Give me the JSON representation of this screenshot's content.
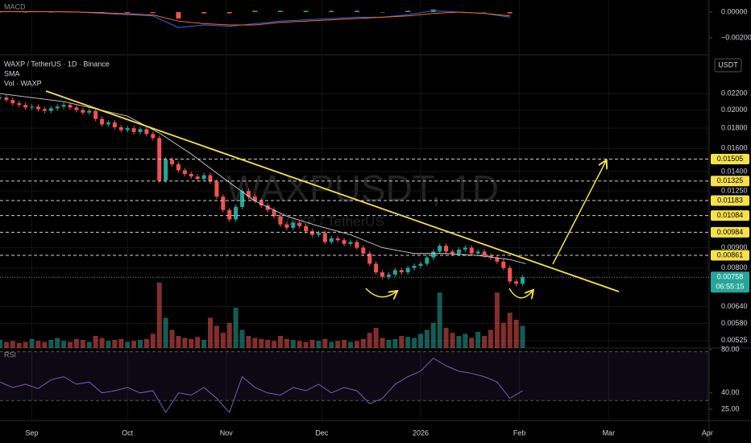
{
  "chart_data": [
    {
      "type": "candlestick",
      "title": "WAXP / TetherUS · 1D · Binance",
      "indicators": [
        "SMA",
        "Vol · WAXP"
      ],
      "watermark": "WAXPUSDT, 1D",
      "watermark_sub": "WAXP / TetherUS",
      "currency": "USDT",
      "up_color": "#26a69a",
      "down_color": "#ef5350",
      "log_scale": true,
      "grid": true,
      "xlim": [
        -10,
        210
      ],
      "xticks": [
        {
          "value": 0,
          "label": "Sep"
        },
        {
          "value": 30,
          "label": "Oct"
        },
        {
          "value": 61,
          "label": "Nov"
        },
        {
          "value": 91,
          "label": "Dec"
        },
        {
          "value": 122,
          "label": "2026"
        },
        {
          "value": 153,
          "label": "Feb"
        },
        {
          "value": 181,
          "label": "Mar"
        },
        {
          "value": 212,
          "label": "Apr"
        }
      ],
      "ylim": [
        0.00503,
        0.0273
      ],
      "yticks": [
        {
          "value": 0.022,
          "label": "0.02200"
        },
        {
          "value": 0.02,
          "label": "0.02000"
        },
        {
          "value": 0.018,
          "label": "0.01800"
        },
        {
          "value": 0.016,
          "label": "0.01600"
        },
        {
          "value": 0.014,
          "label": "0.01400"
        },
        {
          "value": 0.0125,
          "label": "0.01250"
        },
        {
          "value": 0.009,
          "label": "0.00900"
        },
        {
          "value": 0.008,
          "label": "0.00800"
        },
        {
          "value": 0.0064,
          "label": "0.00640"
        },
        {
          "value": 0.0058,
          "label": "0.00580"
        },
        0.00525
      ],
      "x": [
        -10,
        -8,
        -6,
        -4,
        -2,
        0,
        2,
        4,
        6,
        8,
        10,
        12,
        14,
        16,
        18,
        20,
        22,
        24,
        26,
        28,
        30,
        32,
        34,
        36,
        38,
        40,
        42,
        44,
        46,
        48,
        50,
        52,
        54,
        56,
        58,
        60,
        62,
        64,
        66,
        68,
        70,
        72,
        74,
        76,
        78,
        80,
        82,
        84,
        86,
        88,
        90,
        92,
        94,
        96,
        98,
        100,
        102,
        104,
        106,
        108,
        110,
        112,
        114,
        116,
        118,
        120,
        122,
        124,
        126,
        128,
        130,
        132,
        134,
        136,
        138,
        140,
        142,
        144,
        146,
        148,
        150,
        152,
        154
      ],
      "values": [
        0.0215,
        0.0212,
        0.0208,
        0.0206,
        0.0203,
        0.0204,
        0.0201,
        0.0199,
        0.0202,
        0.0204,
        0.0206,
        0.0203,
        0.02,
        0.0197,
        0.0199,
        0.019,
        0.0184,
        0.0186,
        0.0181,
        0.0178,
        0.018,
        0.0176,
        0.0179,
        0.0174,
        0.017,
        0.0133,
        0.015,
        0.0146,
        0.0141,
        0.0138,
        0.0136,
        0.0134,
        0.0137,
        0.0132,
        0.0121,
        0.0112,
        0.0106,
        0.0114,
        0.0125,
        0.0121,
        0.0118,
        0.0115,
        0.0112,
        0.0108,
        0.0103,
        0.0101,
        0.0104,
        0.0102,
        0.0099,
        0.0097,
        0.0098,
        0.0093,
        0.0095,
        0.0094,
        0.0092,
        0.0093,
        0.009,
        0.0087,
        0.0082,
        0.0078,
        0.0076,
        0.0077,
        0.0079,
        0.0078,
        0.008,
        0.0081,
        0.0082,
        0.0085,
        0.0088,
        0.0091,
        0.0088,
        0.0087,
        0.0089,
        0.009,
        0.0087,
        0.0088,
        0.0086,
        0.0085,
        0.0083,
        0.008,
        0.0074,
        0.0073,
        0.00758
      ],
      "sma": {
        "color": "#cfcfcf",
        "x": [
          -10,
          10,
          30,
          40,
          50,
          60,
          70,
          80,
          90,
          100,
          110,
          120,
          130,
          140,
          150,
          155
        ],
        "values": [
          0.022,
          0.021,
          0.0193,
          0.0175,
          0.0155,
          0.0135,
          0.0118,
          0.0108,
          0.0102,
          0.0097,
          0.009,
          0.0087,
          0.0087,
          0.0086,
          0.0084,
          0.0082
        ]
      },
      "volume": {
        "ylim": [
          0,
          80
        ],
        "values": [
          8,
          6,
          7,
          5,
          6,
          9,
          7,
          6,
          8,
          10,
          7,
          6,
          9,
          8,
          6,
          12,
          10,
          7,
          8,
          9,
          6,
          7,
          8,
          9,
          14,
          65,
          30,
          18,
          12,
          10,
          9,
          11,
          8,
          30,
          22,
          15,
          25,
          40,
          18,
          12,
          10,
          9,
          8,
          7,
          12,
          9,
          8,
          7,
          6,
          8,
          7,
          9,
          6,
          7,
          8,
          6,
          7,
          9,
          15,
          20,
          10,
          8,
          9,
          12,
          11,
          10,
          14,
          18,
          25,
          55,
          20,
          15,
          12,
          14,
          10,
          16,
          12,
          18,
          55,
          25,
          35,
          28,
          22
        ]
      },
      "levels": [
        0.01505,
        0.01325,
        0.01183,
        0.01084,
        0.00984,
        0.00861
      ],
      "level_color": "#f5e14a",
      "last_price": 0.00758,
      "countdown": "06:55:15"
    },
    {
      "type": "line",
      "title": "RSI",
      "color": "#7e57c2",
      "ylim": [
        14.6,
        80.7
      ],
      "bands": [
        78,
        33
      ],
      "yticks": [
        {
          "value": 80,
          "label": "80.00"
        },
        {
          "value": 40,
          "label": "40.00"
        },
        {
          "value": 25,
          "label": "25.00"
        }
      ],
      "x": [
        -10,
        -6,
        -2,
        2,
        6,
        10,
        14,
        18,
        22,
        26,
        30,
        34,
        38,
        42,
        46,
        50,
        54,
        58,
        62,
        66,
        70,
        74,
        78,
        82,
        86,
        90,
        94,
        98,
        102,
        106,
        110,
        114,
        118,
        122,
        126,
        130,
        134,
        138,
        142,
        146,
        150,
        154
      ],
      "values": [
        50,
        45,
        48,
        44,
        52,
        55,
        48,
        50,
        40,
        42,
        45,
        40,
        42,
        22,
        40,
        38,
        45,
        35,
        22,
        55,
        45,
        40,
        38,
        45,
        42,
        48,
        40,
        45,
        42,
        30,
        35,
        48,
        55,
        60,
        72,
        65,
        60,
        58,
        55,
        50,
        35,
        42
      ]
    },
    {
      "type": "macd",
      "title": "MACD",
      "ylim": [
        -0.00313,
        0.00094
      ],
      "yticks": [
        {
          "value": 0,
          "label": "0.00000"
        },
        {
          "value": -0.002,
          "label": "−0.00200"
        }
      ],
      "x": [
        -10,
        -2,
        6,
        14,
        22,
        30,
        38,
        46,
        54,
        62,
        70,
        78,
        86,
        94,
        102,
        110,
        118,
        126,
        134,
        142,
        150
      ],
      "series": [
        {
          "name": "Histogram",
          "kind": "bar",
          "color": "#26a69a",
          "negative_color": "#ef5350",
          "values": [
            1e-05,
            -1e-05,
            0,
            -1e-05,
            -5e-05,
            -7e-05,
            -8e-05,
            -0.0005,
            -0.0001,
            -0.0001,
            0.0001,
            0.0001,
            0.0001,
            0.0001,
            0.0001,
            0,
            0.0001,
            0.0002,
            0,
            0,
            -0.0001
          ]
        },
        {
          "name": "MACD",
          "kind": "line",
          "color": "#2962ff",
          "values": [
            5e-05,
            2e-05,
            3e-05,
            0,
            -0.0001,
            -0.0002,
            -0.0003,
            -0.0012,
            -0.001,
            -0.0011,
            -0.0009,
            -0.0007,
            -0.0006,
            -0.0005,
            -0.0004,
            -0.0004,
            -0.0002,
            0.0001,
            0,
            -0.0001,
            -0.0004
          ]
        },
        {
          "name": "Signal",
          "kind": "line",
          "color": "#ff6d00",
          "values": [
            4e-05,
            3e-05,
            3e-05,
            1e-05,
            -5e-05,
            -0.00013,
            -0.00022,
            -0.0007,
            -0.0009,
            -0.001,
            -0.001,
            -0.0008,
            -0.0007,
            -0.0006,
            -0.0005,
            -0.0004,
            -0.0003,
            -0.0001,
            0,
            -0.0001,
            -0.0003
          ]
        }
      ]
    }
  ]
}
